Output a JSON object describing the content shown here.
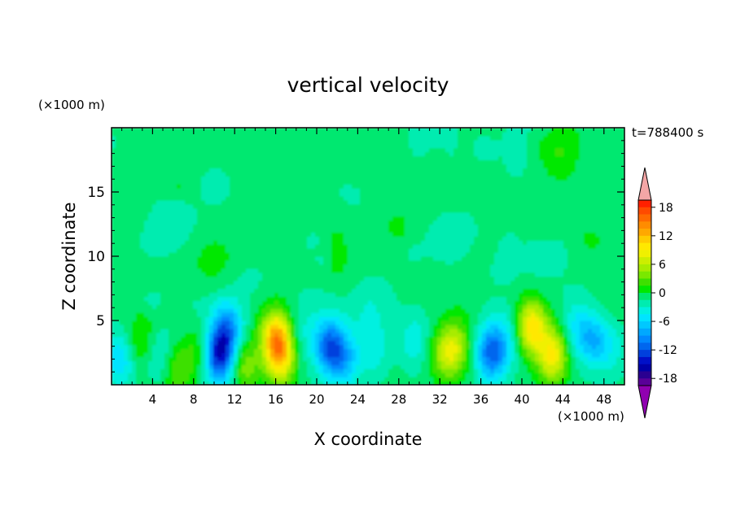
{
  "chart_data": {
    "type": "heatmap",
    "title": "vertical velocity",
    "xlabel": "X coordinate",
    "ylabel": "Z coordinate",
    "x_unit": "(×1000 m)",
    "y_unit": "(×1000 m)",
    "time_label": "t=788400 s",
    "xlim": [
      0,
      50
    ],
    "ylim": [
      0,
      20
    ],
    "x_ticks": [
      4,
      8,
      12,
      16,
      20,
      24,
      28,
      32,
      36,
      40,
      44,
      48
    ],
    "y_ticks": [
      5,
      10,
      15
    ],
    "colorbar": {
      "ticks": [
        18,
        12,
        6,
        0,
        -6,
        -12,
        -18
      ],
      "levels": [
        {
          "min": 19.5,
          "color": "#f4a6a6"
        },
        {
          "min": 18,
          "max": 19.5,
          "color": "#ff2000"
        },
        {
          "min": 16.5,
          "max": 18,
          "color": "#ff4a00"
        },
        {
          "min": 15,
          "max": 16.5,
          "color": "#ff6a00"
        },
        {
          "min": 13.5,
          "max": 15,
          "color": "#ff8c00"
        },
        {
          "min": 12,
          "max": 13.5,
          "color": "#ffa800"
        },
        {
          "min": 10.5,
          "max": 12,
          "color": "#ffcc00"
        },
        {
          "min": 9,
          "max": 10.5,
          "color": "#ffe800"
        },
        {
          "min": 7.5,
          "max": 9,
          "color": "#f0f000"
        },
        {
          "min": 6,
          "max": 7.5,
          "color": "#ccee00"
        },
        {
          "min": 4.5,
          "max": 6,
          "color": "#a8ec00"
        },
        {
          "min": 3,
          "max": 4.5,
          "color": "#7ae800"
        },
        {
          "min": 1.5,
          "max": 3,
          "color": "#3ee000"
        },
        {
          "min": 0,
          "max": 1.5,
          "color": "#00e800"
        },
        {
          "min": -1.5,
          "max": 0,
          "color": "#00e870"
        },
        {
          "min": -3,
          "max": -1.5,
          "color": "#00ecb0"
        },
        {
          "min": -4.5,
          "max": -3,
          "color": "#00f0e0"
        },
        {
          "min": -6,
          "max": -4.5,
          "color": "#00e4ff"
        },
        {
          "min": -7.5,
          "max": -6,
          "color": "#00c8ff"
        },
        {
          "min": -9,
          "max": -7.5,
          "color": "#00a8ff"
        },
        {
          "min": -10.5,
          "max": -9,
          "color": "#0088ff"
        },
        {
          "min": -12,
          "max": -10.5,
          "color": "#0066ee"
        },
        {
          "min": -13.5,
          "max": -12,
          "color": "#0040dd"
        },
        {
          "min": -15,
          "max": -13.5,
          "color": "#0010c8"
        },
        {
          "min": -16.5,
          "max": -15,
          "color": "#0000a8"
        },
        {
          "min": -18,
          "max": -16.5,
          "color": "#2a0090"
        },
        {
          "min": -19.5,
          "max": -18,
          "color": "#5a0098"
        },
        {
          "max": -19.5,
          "color": "#9000b0"
        }
      ]
    },
    "features": [
      {
        "x": 0.8,
        "z": 2.0,
        "w": -5
      },
      {
        "x": 2.8,
        "z": 3.3,
        "w": 3
      },
      {
        "x": 4.8,
        "z": 2.2,
        "w": -3
      },
      {
        "x": 6.3,
        "z": 1.2,
        "w": 4
      },
      {
        "x": 8.5,
        "z": 2.5,
        "w": 3
      },
      {
        "x": 10.5,
        "z": 2.3,
        "w": -13
      },
      {
        "x": 11.3,
        "z": 4.5,
        "w": -8
      },
      {
        "x": 13.0,
        "z": 1.5,
        "w": 5
      },
      {
        "x": 16.0,
        "z": 3.8,
        "w": 12
      },
      {
        "x": 16.5,
        "z": 2.0,
        "w": 9
      },
      {
        "x": 18.5,
        "z": 4.0,
        "w": -2
      },
      {
        "x": 21.2,
        "z": 3.0,
        "w": -10
      },
      {
        "x": 22.7,
        "z": 2.0,
        "w": -6
      },
      {
        "x": 25.5,
        "z": 2.8,
        "w": -3
      },
      {
        "x": 29.5,
        "z": 3.5,
        "w": -3
      },
      {
        "x": 33.5,
        "z": 3.0,
        "w": 6
      },
      {
        "x": 32.5,
        "z": 2.3,
        "w": 5
      },
      {
        "x": 37.0,
        "z": 2.5,
        "w": -10
      },
      {
        "x": 38.5,
        "z": 3.5,
        "w": -3
      },
      {
        "x": 41.0,
        "z": 4.5,
        "w": 11
      },
      {
        "x": 43.0,
        "z": 2.3,
        "w": 10
      },
      {
        "x": 45.5,
        "z": 4.2,
        "w": -4
      },
      {
        "x": 47.2,
        "z": 3.5,
        "w": -6
      },
      {
        "x": 49.0,
        "z": 2.8,
        "w": -2
      }
    ],
    "upper_region": {
      "z_min": 12.0,
      "z_max": 20.0,
      "w_range": [
        -2,
        2
      ]
    }
  }
}
